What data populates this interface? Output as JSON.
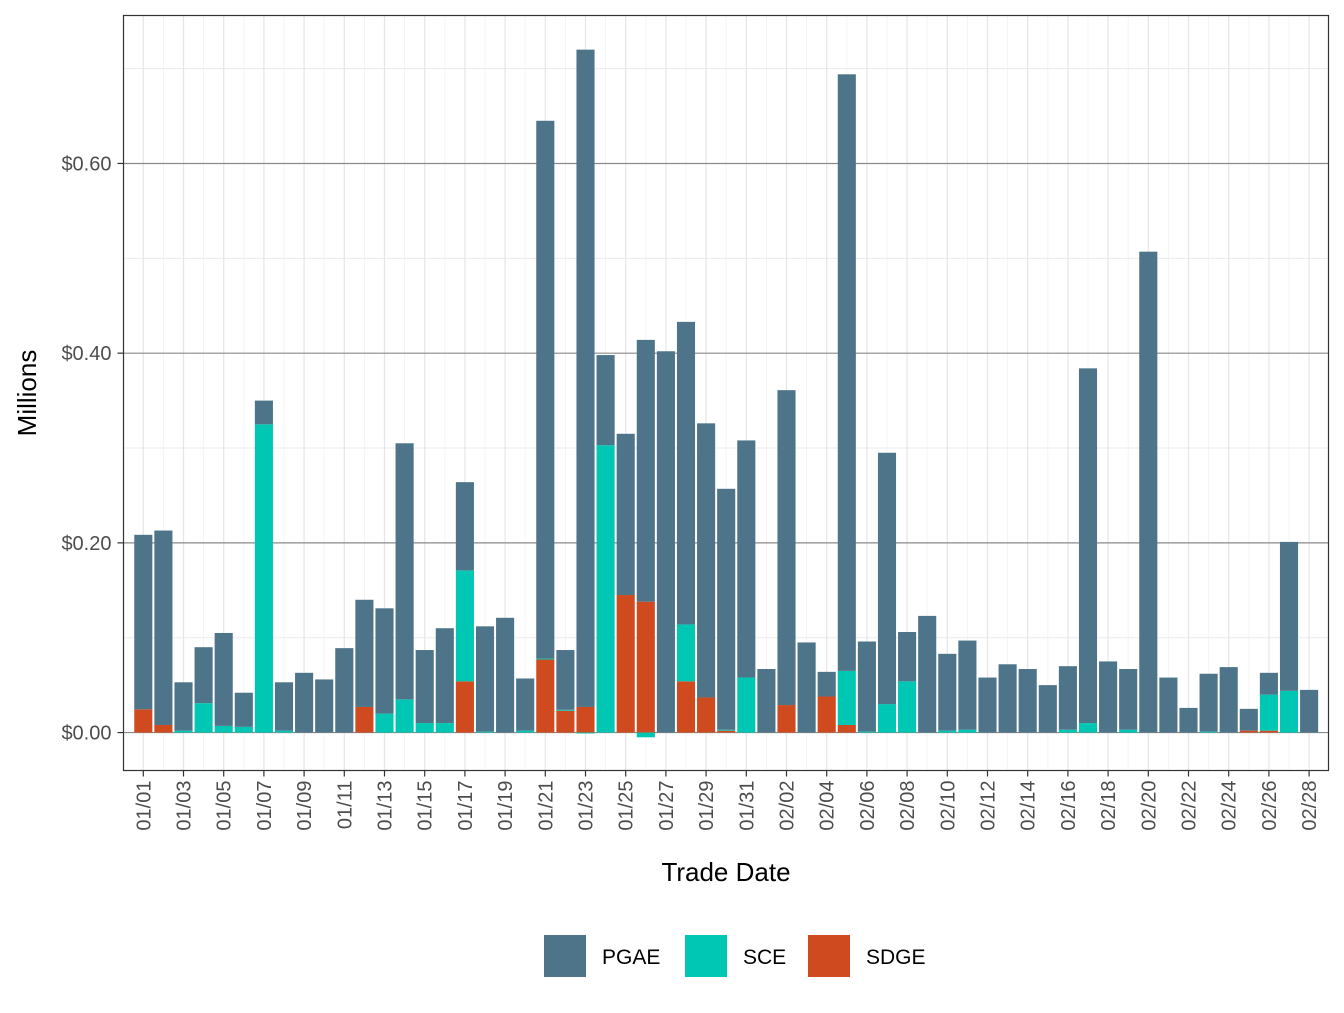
{
  "chart_data": {
    "type": "bar",
    "stacked": true,
    "xlabel": "Trade Date",
    "ylabel": "Millions",
    "ylim": [
      -0.04,
      0.756
    ],
    "y_ticks": [
      0,
      0.2,
      0.4,
      0.6
    ],
    "y_tick_labels": [
      "$0.00",
      "$0.20",
      "$0.40",
      "$0.60"
    ],
    "grid": true,
    "legend_position": "bottom",
    "categories": [
      "01/01",
      "01/02",
      "01/03",
      "01/04",
      "01/05",
      "01/06",
      "01/07",
      "01/08",
      "01/09",
      "01/10",
      "01/11",
      "01/12",
      "01/13",
      "01/14",
      "01/15",
      "01/16",
      "01/17",
      "01/18",
      "01/19",
      "01/20",
      "01/21",
      "01/22",
      "01/23",
      "01/24",
      "01/25",
      "01/26",
      "01/27",
      "01/28",
      "01/29",
      "01/30",
      "01/31",
      "02/01",
      "02/02",
      "02/03",
      "02/04",
      "02/05",
      "02/06",
      "02/07",
      "02/08",
      "02/09",
      "02/10",
      "02/11",
      "02/12",
      "02/13",
      "02/14",
      "02/15",
      "02/16",
      "02/17",
      "02/18",
      "02/19",
      "02/20",
      "02/21",
      "02/22",
      "02/23",
      "02/24",
      "02/25",
      "02/26",
      "02/27",
      "02/28"
    ],
    "x_tick_labels": [
      "01/01",
      "01/03",
      "01/05",
      "01/07",
      "01/09",
      "01/11",
      "01/13",
      "01/15",
      "01/17",
      "01/19",
      "01/21",
      "01/23",
      "01/25",
      "01/27",
      "01/29",
      "01/31",
      "02/02",
      "02/04",
      "02/06",
      "02/08",
      "02/10",
      "02/12",
      "02/14",
      "02/16",
      "02/18",
      "02/20",
      "02/22",
      "02/24",
      "02/26",
      "02/28"
    ],
    "series": [
      {
        "name": "SDGE",
        "color": "#D04A20",
        "values": [
          0.0245,
          0.008,
          0,
          0,
          0,
          0,
          0,
          0,
          0,
          0,
          0,
          0.027,
          0,
          0,
          0,
          0,
          0.054,
          0,
          0,
          0,
          0.077,
          0.023,
          0.027,
          0,
          0.145,
          0.138,
          0,
          0.054,
          0.037,
          0.002,
          0,
          0,
          0.029,
          0,
          0.038,
          0.008,
          0,
          0,
          0,
          0,
          0,
          0,
          0,
          0,
          0,
          0,
          0,
          0,
          0,
          0,
          0,
          0,
          0,
          0,
          0,
          0.002,
          0.002,
          0,
          0
        ]
      },
      {
        "name": "SCE",
        "color": "#00C7B3",
        "values": [
          0,
          0,
          0.002,
          0.031,
          0.007,
          0.006,
          0.325,
          0.002,
          0,
          0,
          0,
          0,
          0.02,
          0.035,
          0.01,
          0.01,
          0.117,
          0.001,
          0,
          0.002,
          0.001,
          0.001,
          -0.001,
          0.303,
          0,
          -0.005,
          0,
          0.06,
          0,
          0.001,
          0.058,
          0,
          0,
          0,
          0,
          0.057,
          0.001,
          0.03,
          0.054,
          0,
          0.002,
          0.003,
          0,
          0,
          0,
          0,
          0.003,
          0.01,
          0,
          0.003,
          0,
          0,
          0,
          0.001,
          0,
          0,
          0.038,
          0.044,
          0
        ]
      },
      {
        "name": "PGAE",
        "color": "#4E7489",
        "values": [
          0.184,
          0.205,
          0.051,
          0.059,
          0.098,
          0.036,
          0.025,
          0.051,
          0.063,
          0.056,
          0.089,
          0.113,
          0.111,
          0.27,
          0.077,
          0.1,
          0.093,
          0.111,
          0.121,
          0.055,
          0.567,
          0.063,
          0.693,
          0.095,
          0.17,
          0.276,
          0.402,
          0.319,
          0.289,
          0.254,
          0.25,
          0.067,
          0.332,
          0.095,
          0.026,
          0.629,
          0.095,
          0.265,
          0.052,
          0.123,
          0.081,
          0.094,
          0.058,
          0.072,
          0.067,
          0.05,
          0.067,
          0.374,
          0.075,
          0.064,
          0.507,
          0.058,
          0.026,
          0.061,
          0.069,
          0.023,
          0.023,
          0.157,
          0.045
        ]
      }
    ],
    "legend": [
      "PGAE",
      "SCE",
      "SDGE"
    ]
  }
}
